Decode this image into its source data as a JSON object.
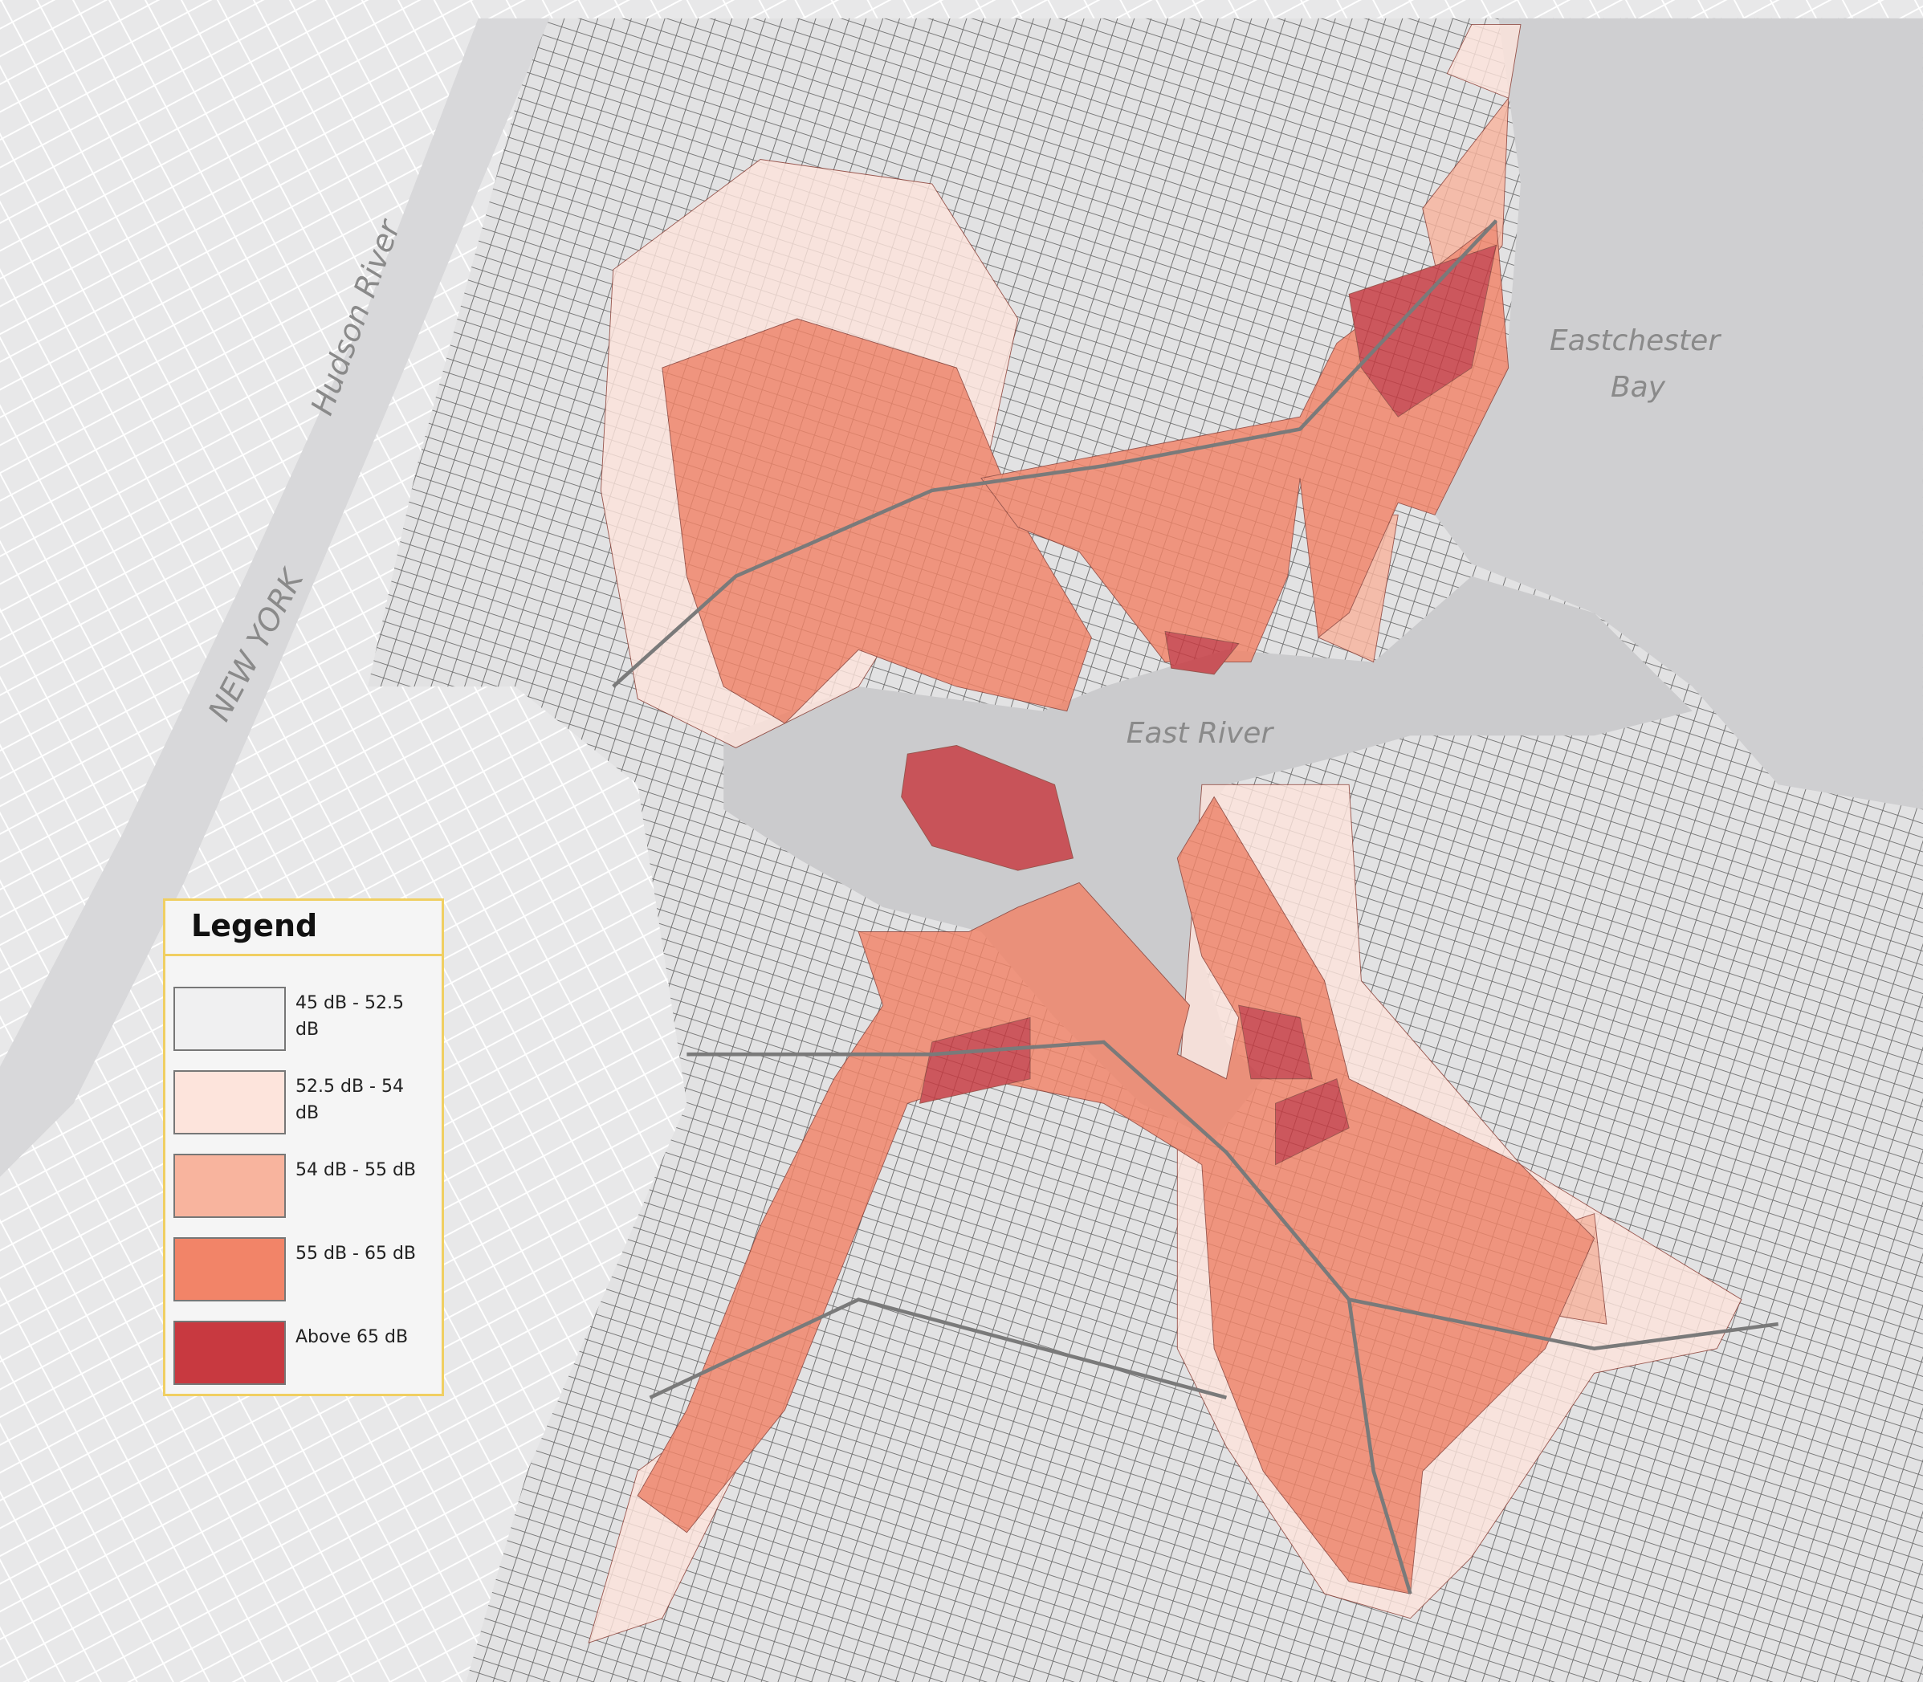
{
  "map": {
    "labels": {
      "hudson": "Hudson River",
      "state": "NEW YORK",
      "bay": [
        "Eastchester",
        "Bay"
      ],
      "river": "East River"
    },
    "legend": {
      "title": "Legend",
      "items": [
        {
          "label": "45 dB - 52.5 dB",
          "color": "#f0f0f1"
        },
        {
          "label": "52.5 dB - 54 dB",
          "color": "#fde4dc"
        },
        {
          "label": "54 dB - 55 dB",
          "color": "#f8b49e"
        },
        {
          "label": "55 dB - 65 dB",
          "color": "#f28468"
        },
        {
          "label": "Above 65 dB",
          "color": "#c83940"
        }
      ]
    }
  }
}
